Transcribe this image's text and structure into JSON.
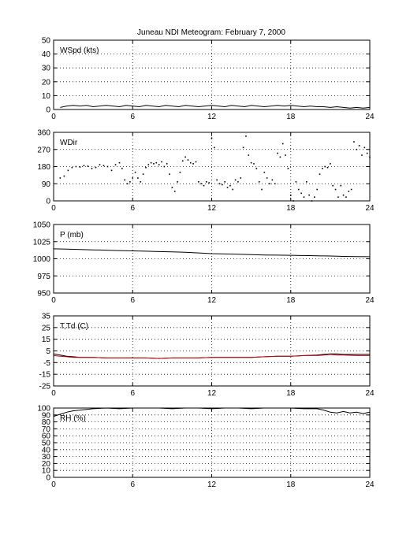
{
  "title": "Juneau NDI Meteogram:  February  7, 2000",
  "chart_data": [
    {
      "type": "line",
      "label": "WSpd (kts)",
      "xlim": [
        0,
        24
      ],
      "ylim": [
        0,
        50
      ],
      "xticks": [
        0,
        6,
        12,
        18,
        24
      ],
      "yticks": [
        0,
        10,
        20,
        30,
        40,
        50
      ],
      "grid": true,
      "series": [
        {
          "color": "#000000",
          "x": [
            0.5,
            1,
            1.5,
            2,
            2.5,
            3,
            3.5,
            4,
            4.5,
            5,
            5.5,
            6,
            6.5,
            7,
            7.5,
            8,
            8.5,
            9,
            9.5,
            10,
            10.5,
            11,
            11.5,
            12,
            12.5,
            13,
            13.5,
            14,
            14.5,
            15,
            15.5,
            16,
            16.5,
            17,
            17.5,
            18,
            18.5,
            19,
            19.5,
            20,
            20.5,
            21,
            21.5,
            22,
            22.5,
            23,
            23.5,
            24
          ],
          "y": [
            1.5,
            2.5,
            3,
            2.5,
            3,
            2,
            2.5,
            3,
            2.5,
            2,
            3,
            2.5,
            2,
            3,
            2.5,
            2,
            3,
            2.5,
            2,
            3,
            2.5,
            2,
            2.5,
            3,
            2.5,
            2,
            3,
            2.5,
            2,
            3,
            2.5,
            2,
            2.5,
            3,
            2.5,
            3,
            2.5,
            2,
            2.5,
            2,
            2,
            1.5,
            2,
            1.5,
            1,
            1.5,
            1,
            1.5
          ]
        }
      ]
    },
    {
      "type": "scatter",
      "label": "WDir",
      "xlim": [
        0,
        24
      ],
      "ylim": [
        0,
        360
      ],
      "xticks": [
        0,
        6,
        12,
        18,
        24
      ],
      "yticks": [
        0,
        90,
        180,
        270,
        360
      ],
      "grid": true,
      "series": [
        {
          "color": "#000000",
          "x": [
            0.5,
            0.8,
            1.1,
            1.4,
            1.7,
            2,
            2.3,
            2.6,
            2.9,
            3.2,
            3.5,
            3.8,
            4.1,
            4.4,
            4.7,
            5,
            5.2,
            5.4,
            5.6,
            5.8,
            6,
            6.2,
            6.4,
            6.6,
            6.8,
            7,
            7.2,
            7.4,
            7.6,
            7.8,
            8,
            8.2,
            8.4,
            8.6,
            8.8,
            9,
            9.2,
            9.4,
            9.6,
            9.8,
            10,
            10.2,
            10.4,
            10.6,
            10.8,
            11,
            11.2,
            11.4,
            11.6,
            11.8,
            12,
            12.2,
            12.4,
            12.6,
            12.8,
            13,
            13.2,
            13.4,
            13.6,
            13.8,
            14,
            14.2,
            14.4,
            14.6,
            14.8,
            15,
            15.2,
            15.4,
            15.6,
            15.8,
            16,
            16.2,
            16.4,
            16.6,
            16.8,
            17,
            17.2,
            17.4,
            17.6,
            17.8,
            18,
            18.2,
            18.4,
            18.6,
            18.8,
            19,
            19.2,
            19.4,
            19.6,
            19.8,
            20,
            20.2,
            20.4,
            20.6,
            20.8,
            21,
            21.2,
            21.4,
            21.6,
            21.8,
            22,
            22.2,
            22.4,
            22.6,
            22.8,
            23,
            23.2,
            23.4,
            23.6,
            23.8,
            24
          ],
          "y": [
            120,
            130,
            160,
            175,
            180,
            178,
            185,
            182,
            170,
            175,
            190,
            185,
            180,
            160,
            190,
            200,
            170,
            110,
            90,
            100,
            120,
            150,
            120,
            100,
            140,
            175,
            190,
            200,
            195,
            200,
            190,
            205,
            180,
            195,
            140,
            70,
            50,
            100,
            150,
            210,
            230,
            215,
            200,
            195,
            205,
            100,
            90,
            80,
            100,
            95,
            330,
            280,
            110,
            90,
            85,
            100,
            70,
            80,
            60,
            110,
            100,
            120,
            280,
            340,
            240,
            200,
            195,
            170,
            100,
            60,
            150,
            120,
            90,
            110,
            90,
            250,
            230,
            300,
            240,
            170,
            30,
            0,
            100,
            60,
            40,
            20,
            100,
            30,
            0,
            20,
            60,
            140,
            170,
            180,
            175,
            195,
            80,
            60,
            20,
            80,
            30,
            20,
            50,
            60,
            310,
            270,
            290,
            240,
            280,
            250,
            230
          ]
        }
      ]
    },
    {
      "type": "line",
      "label": "P (mb)",
      "xlim": [
        0,
        24
      ],
      "ylim": [
        950,
        1050
      ],
      "xticks": [
        0,
        6,
        12,
        18,
        24
      ],
      "yticks": [
        950,
        975,
        1000,
        1025,
        1050
      ],
      "grid": true,
      "series": [
        {
          "color": "#000000",
          "x": [
            0,
            1,
            2,
            3,
            4,
            5,
            6,
            7,
            8,
            9,
            10,
            11,
            12,
            13,
            14,
            15,
            16,
            17,
            18,
            19,
            20,
            21,
            22,
            23,
            24
          ],
          "y": [
            1014.5,
            1014,
            1013.5,
            1013,
            1012.5,
            1012,
            1011.5,
            1011,
            1010.5,
            1010,
            1009.5,
            1008.5,
            1007.5,
            1007,
            1006.5,
            1006,
            1005.5,
            1005.3,
            1005,
            1004.7,
            1004.3,
            1004,
            1003.5,
            1003.2,
            1003
          ]
        }
      ]
    },
    {
      "type": "line",
      "label": "T,Td (C)",
      "xlim": [
        0,
        24
      ],
      "ylim": [
        -25,
        35
      ],
      "xticks": [
        0,
        6,
        12,
        18,
        24
      ],
      "yticks": [
        -25,
        -15,
        -5,
        5,
        15,
        25,
        35
      ],
      "grid": true,
      "series": [
        {
          "color": "#000000",
          "x": [
            0,
            0.5,
            1,
            1.5,
            2,
            3,
            4,
            5,
            6,
            7,
            8,
            9,
            10,
            11,
            12,
            13,
            14,
            15,
            16,
            17,
            18,
            19,
            20,
            20.5,
            21,
            21.5,
            22,
            23,
            24
          ],
          "y": [
            2.5,
            1.5,
            0.5,
            0,
            -0.5,
            -0.5,
            -1,
            -1,
            -1,
            -1,
            -1.5,
            -1,
            -1,
            -1,
            -0.5,
            -0.5,
            -0.5,
            -0.5,
            0,
            0.5,
            0.5,
            1,
            1.5,
            2,
            2.5,
            2.5,
            2,
            2,
            2
          ]
        },
        {
          "color": "#cc0000",
          "x": [
            0,
            0.5,
            1,
            1.5,
            2,
            3,
            4,
            5,
            6,
            7,
            8,
            9,
            10,
            11,
            12,
            13,
            14,
            15,
            16,
            17,
            18,
            19,
            20,
            20.5,
            21,
            21.5,
            22,
            23,
            24
          ],
          "y": [
            1,
            0.5,
            0,
            -0.5,
            -0.5,
            -0.5,
            -1,
            -1,
            -1,
            -1,
            -1.5,
            -1,
            -1,
            -1,
            -0.5,
            -0.5,
            -0.5,
            -0.5,
            0,
            0.5,
            0.5,
            1,
            1,
            1.5,
            2,
            1.5,
            1.5,
            1,
            1
          ]
        }
      ]
    },
    {
      "type": "line",
      "label": "RH (%)",
      "xlim": [
        0,
        24
      ],
      "ylim": [
        0,
        100
      ],
      "xticks": [
        0,
        6,
        12,
        18,
        24
      ],
      "yticks": [
        0,
        10,
        20,
        30,
        40,
        50,
        60,
        70,
        80,
        90,
        100
      ],
      "grid": true,
      "series": [
        {
          "color": "#000000",
          "x": [
            0,
            0.5,
            1,
            1.5,
            2,
            2.5,
            3,
            4,
            5,
            6,
            7,
            8,
            9,
            10,
            11,
            12,
            13,
            14,
            15,
            16,
            17,
            18,
            19,
            20,
            20.5,
            21,
            21.5,
            22,
            22.5,
            23,
            23.5,
            24
          ],
          "y": [
            88,
            91,
            94,
            96,
            97,
            98,
            99,
            100,
            99,
            100,
            100,
            100,
            99,
            100,
            100,
            99,
            100,
            100,
            99,
            100,
            100,
            100,
            99,
            99,
            97,
            94,
            93,
            95,
            93,
            94,
            92,
            94
          ]
        }
      ]
    }
  ]
}
